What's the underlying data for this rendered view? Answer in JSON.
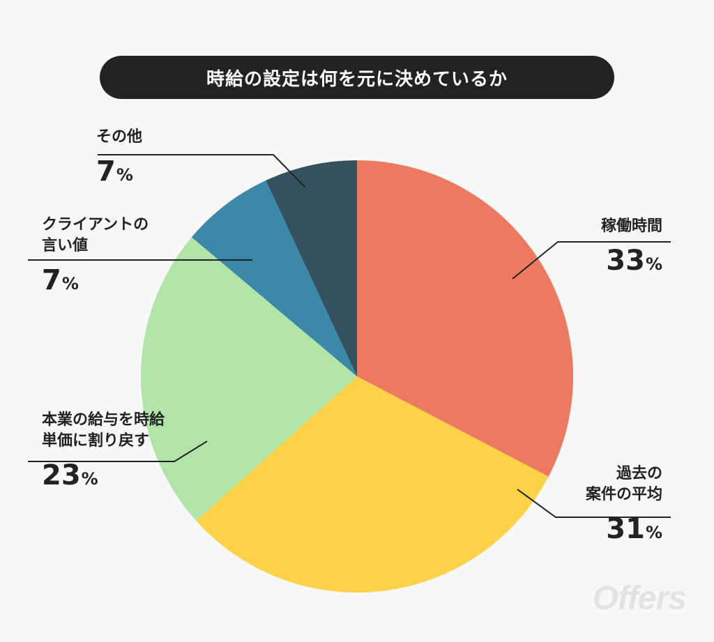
{
  "title": "時給の設定は何を元に決めているか",
  "watermark": "Offers",
  "chart_data": {
    "type": "pie",
    "title": "時給の設定は何を元に決めているか",
    "unit": "%",
    "start": "12 o'clock, clockwise",
    "slices": [
      {
        "label_lines": [
          "稼働時間"
        ],
        "value": 33,
        "color": "#ec7a61"
      },
      {
        "label_lines": [
          "過去の",
          "案件の平均"
        ],
        "value": 31,
        "color": "#fdd249"
      },
      {
        "label_lines": [
          "本業の給与を時給",
          "単価に割り戻す"
        ],
        "value": 23,
        "color": "#b1e4a7"
      },
      {
        "label_lines": [
          "クライアントの",
          "言い値"
        ],
        "value": 7,
        "color": "#3b88a8"
      },
      {
        "label_lines": [
          "その他"
        ],
        "value": 7,
        "color": "#34515f"
      }
    ]
  }
}
